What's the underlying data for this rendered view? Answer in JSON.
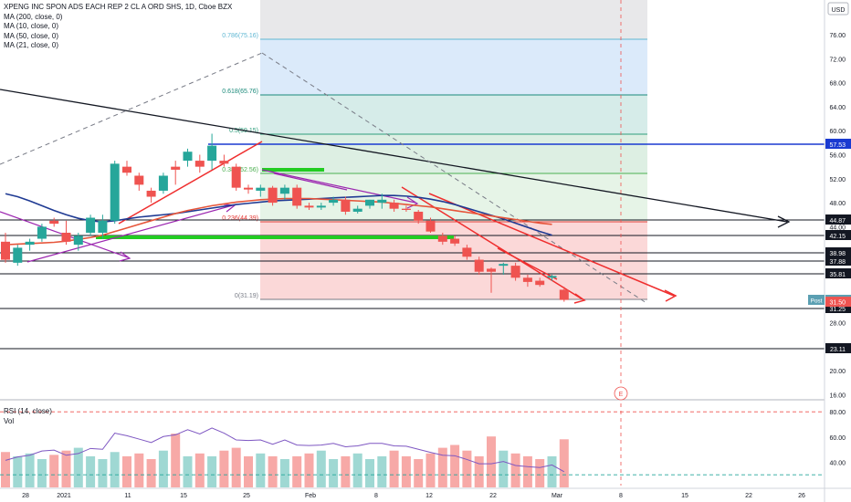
{
  "header": {
    "title": "XPENG INC SPON ADS EACH REP 2 CL A ORD SHS, 1D, Cboe BZX",
    "ma_lines": [
      "MA (200, close, 0)",
      "MA (10, close, 0)",
      "MA (50, close, 0)",
      "MA (21, close, 0)"
    ]
  },
  "currency": "USD",
  "lower_pane": {
    "rsi_label": "RSI (14, close)",
    "vol_label": "Vol"
  },
  "chart_data": {
    "type": "candlestick",
    "yaxis": {
      "ticks": [
        16,
        20,
        24,
        28,
        32,
        36,
        40,
        44,
        48,
        52,
        56,
        60,
        64,
        68,
        72,
        76
      ],
      "unit": "USD"
    },
    "xaxis": {
      "ticks": [
        "28",
        "2021",
        "11",
        "15",
        "25",
        "Feb",
        "8",
        "12",
        "22",
        "Mar",
        "8",
        "15",
        "22",
        "26"
      ]
    },
    "candles": [
      {
        "o": 41.5,
        "h": 43,
        "l": 38,
        "c": 38.5
      },
      {
        "o": 38,
        "h": 41,
        "l": 37.5,
        "c": 40.5
      },
      {
        "o": 41,
        "h": 42,
        "l": 40,
        "c": 41.5
      },
      {
        "o": 42,
        "h": 44.5,
        "l": 41.5,
        "c": 44
      },
      {
        "o": 45,
        "h": 45.5,
        "l": 44,
        "c": 44.5
      },
      {
        "o": 43,
        "h": 45,
        "l": 41,
        "c": 41.5
      },
      {
        "o": 41,
        "h": 43,
        "l": 40,
        "c": 42.5
      },
      {
        "o": 43,
        "h": 46,
        "l": 42.5,
        "c": 45.5
      },
      {
        "o": 43,
        "h": 46,
        "l": 42,
        "c": 45
      },
      {
        "o": 45,
        "h": 55,
        "l": 44.5,
        "c": 54.5
      },
      {
        "o": 54,
        "h": 55,
        "l": 52.5,
        "c": 53
      },
      {
        "o": 52.5,
        "h": 53,
        "l": 50,
        "c": 51
      },
      {
        "o": 50,
        "h": 50.5,
        "l": 48,
        "c": 49
      },
      {
        "o": 50,
        "h": 53,
        "l": 49.5,
        "c": 52.5
      },
      {
        "o": 54,
        "h": 55,
        "l": 51,
        "c": 53.5
      },
      {
        "o": 55,
        "h": 57,
        "l": 54,
        "c": 56.5
      },
      {
        "o": 55,
        "h": 56,
        "l": 53,
        "c": 54
      },
      {
        "o": 55,
        "h": 59.5,
        "l": 53.5,
        "c": 57.5
      },
      {
        "o": 55,
        "h": 56,
        "l": 54,
        "c": 54.5
      },
      {
        "o": 54,
        "h": 54.5,
        "l": 50,
        "c": 50.5
      },
      {
        "o": 50.5,
        "h": 51,
        "l": 49.5,
        "c": 50.2
      },
      {
        "o": 50,
        "h": 51,
        "l": 49,
        "c": 50.5
      },
      {
        "o": 50.5,
        "h": 50.8,
        "l": 47.5,
        "c": 48
      },
      {
        "o": 49.5,
        "h": 51,
        "l": 48.5,
        "c": 50.5
      },
      {
        "o": 50.5,
        "h": 51,
        "l": 47,
        "c": 47.5
      },
      {
        "o": 47.5,
        "h": 48,
        "l": 46.8,
        "c": 47.2
      },
      {
        "o": 47.2,
        "h": 48,
        "l": 46.8,
        "c": 47.5
      },
      {
        "o": 48,
        "h": 49,
        "l": 47.5,
        "c": 48.5
      },
      {
        "o": 48.5,
        "h": 49,
        "l": 46,
        "c": 46.5
      },
      {
        "o": 46.5,
        "h": 47.5,
        "l": 46.2,
        "c": 47
      },
      {
        "o": 47.5,
        "h": 48.5,
        "l": 47,
        "c": 48.5
      },
      {
        "o": 48,
        "h": 49.5,
        "l": 47,
        "c": 48.5
      },
      {
        "o": 48,
        "h": 48.5,
        "l": 46.5,
        "c": 47
      },
      {
        "o": 47,
        "h": 47.5,
        "l": 46.5,
        "c": 46.8
      },
      {
        "o": 46.5,
        "h": 46.8,
        "l": 44.5,
        "c": 45
      },
      {
        "o": 45,
        "h": 45.5,
        "l": 43,
        "c": 43.2
      },
      {
        "o": 42.5,
        "h": 43,
        "l": 41,
        "c": 41.5
      },
      {
        "o": 42,
        "h": 42.5,
        "l": 40.8,
        "c": 41.2
      },
      {
        "o": 40.5,
        "h": 41,
        "l": 38.5,
        "c": 39
      },
      {
        "o": 38.5,
        "h": 39,
        "l": 36,
        "c": 36.5
      },
      {
        "o": 37,
        "h": 37.2,
        "l": 33,
        "c": 36.5
      },
      {
        "o": 37.5,
        "h": 38,
        "l": 36,
        "c": 37.8
      },
      {
        "o": 37.5,
        "h": 38,
        "l": 35,
        "c": 35.5
      },
      {
        "o": 35.5,
        "h": 36,
        "l": 34,
        "c": 34.8
      },
      {
        "o": 35,
        "h": 35.5,
        "l": 34,
        "c": 34.3
      },
      {
        "o": 35.5,
        "h": 36,
        "l": 35,
        "c": 35.8
      },
      {
        "o": 33.5,
        "h": 34,
        "l": 31.5,
        "c": 31.8
      }
    ],
    "volume": [
      25,
      22,
      24,
      20,
      23,
      26,
      28,
      22,
      20,
      25,
      22,
      24,
      20,
      26,
      38,
      22,
      24,
      22,
      26,
      28,
      22,
      24,
      22,
      20,
      22,
      24,
      26,
      20,
      22,
      24,
      20,
      22,
      26,
      22,
      20,
      24,
      28,
      30,
      26,
      22,
      36,
      26,
      24,
      22,
      20,
      22,
      34
    ],
    "moving_averages": [
      {
        "name": "MA (200, close, 0)",
        "color": "#1f3a93",
        "values": [
          49.5,
          49,
          48.3,
          47.5,
          46.7,
          46,
          45.4,
          45,
          44.8,
          45,
          45.3,
          45.6,
          45.8,
          46,
          46.2,
          46.5,
          46.8,
          47.1,
          47.4,
          47.7,
          47.9,
          48.1,
          48.3,
          48.4,
          48.5,
          48.6,
          48.7,
          48.8,
          48.9,
          49,
          49.1,
          49.2,
          49.2,
          49.1,
          48.9,
          48.6,
          48.2,
          47.7,
          47.1,
          46.5,
          45.9,
          45.3,
          44.6,
          43.9,
          43.2,
          42.6
        ]
      },
      {
        "name": "MA (50, close, 0)",
        "color": "#e6553a",
        "values": [
          41,
          41.1,
          41.2,
          41.3,
          41.4,
          41.6,
          41.9,
          42.2,
          42.6,
          43.2,
          43.8,
          44.4,
          45,
          45.6,
          46.2,
          46.7,
          47.1,
          47.5,
          47.8,
          48.1,
          48.3,
          48.5,
          48.6,
          48.7,
          48.7,
          48.7,
          48.6,
          48.5,
          48.4,
          48.3,
          48.2,
          48.1,
          47.9,
          47.7,
          47.5,
          47.3,
          47,
          46.7,
          46.4,
          46.1,
          45.8,
          45.5,
          45.2,
          44.9,
          44.6,
          44.4
        ]
      }
    ],
    "rsi": {
      "upper": 80,
      "lower": 30,
      "ticks": [
        40,
        60,
        80
      ]
    },
    "horizontal_levels": [
      {
        "value": "57.53",
        "color": "#1a3ad1"
      },
      {
        "value": "44.87",
        "color": "#131722"
      },
      {
        "value": "42.15",
        "color": "#131722"
      },
      {
        "value": "38.98",
        "color": "#131722"
      },
      {
        "value": "37.88",
        "color": "#131722"
      },
      {
        "value": "35.81",
        "color": "#131722"
      },
      {
        "value": "31.25",
        "color": "#131722"
      },
      {
        "value": "23.11",
        "color": "#131722"
      }
    ],
    "price_labels": [
      {
        "text": "31.82",
        "color": "#5b9fb2",
        "kind": "post",
        "value": 31.82
      },
      {
        "text": "31.50",
        "color": "#ef5350",
        "kind": "last",
        "value": 31.5
      }
    ],
    "post_label": "Post",
    "fibonacci": {
      "low": 31.19,
      "high": 75.16,
      "levels": [
        {
          "ratio": "0.786",
          "price": "75.16",
          "label": "0.786(75.16)"
        },
        {
          "ratio": "0.618",
          "price": "65.76",
          "label": "0.618(65.76)"
        },
        {
          "ratio": "0.5",
          "price": "59.15",
          "label": "0.5(59.15)"
        },
        {
          "ratio": "0.382",
          "price": "52.56",
          "label": "0.382(52.56)"
        },
        {
          "ratio": "0.236",
          "price": "44.39",
          "label": "0.236(44.39)"
        },
        {
          "ratio": "0",
          "price": "31.19",
          "label": "0(31.19)"
        }
      ]
    },
    "event_marker": "E",
    "colors": {
      "up": "#26a69a",
      "down": "#ef5350",
      "vol_up": "#9fd8d3",
      "vol_down": "#f7a9a7"
    }
  }
}
